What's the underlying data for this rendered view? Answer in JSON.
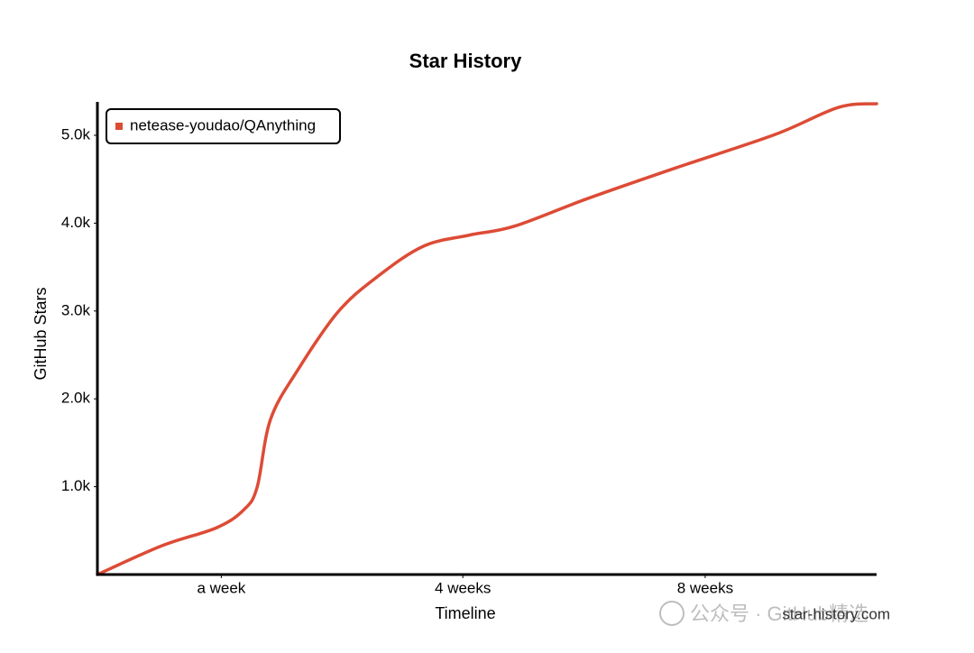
{
  "chart_data": {
    "type": "line",
    "title": "Star History",
    "x_label": "Timeline",
    "y_label": "GitHub Stars",
    "x": [
      0,
      8.3,
      15.3,
      18.8,
      20.5,
      22.2,
      25.7,
      30.9,
      36.1,
      41.9,
      47.7,
      53.5,
      62.7,
      74.3,
      87.0,
      95.1,
      100
    ],
    "series": [
      {
        "name": "netease-youdao/QAnything",
        "color": "#dd4b35",
        "values": [
          0,
          328,
          533,
          738,
          994,
          1762,
          2326,
          2992,
          3402,
          3740,
          3863,
          3965,
          4273,
          4631,
          5010,
          5318,
          5359
        ]
      }
    ],
    "xlim": [
      0,
      100
    ],
    "xticks": [
      {
        "value": 15.9,
        "label": "a week"
      },
      {
        "value": 46.9,
        "label": "4 weeks"
      },
      {
        "value": 78.0,
        "label": "8 weeks"
      }
    ],
    "ylim": [
      0,
      5380
    ],
    "yticks": [
      {
        "value": 1000,
        "label": "1.0k"
      },
      {
        "value": 2000,
        "label": "2.0k"
      },
      {
        "value": 3000,
        "label": "3.0k"
      },
      {
        "value": 4000,
        "label": "4.0k"
      },
      {
        "value": 5000,
        "label": "5.0k"
      }
    ],
    "legend": "top-left",
    "source": "star-history.com",
    "watermark": "公众号 · GitHub精选"
  }
}
